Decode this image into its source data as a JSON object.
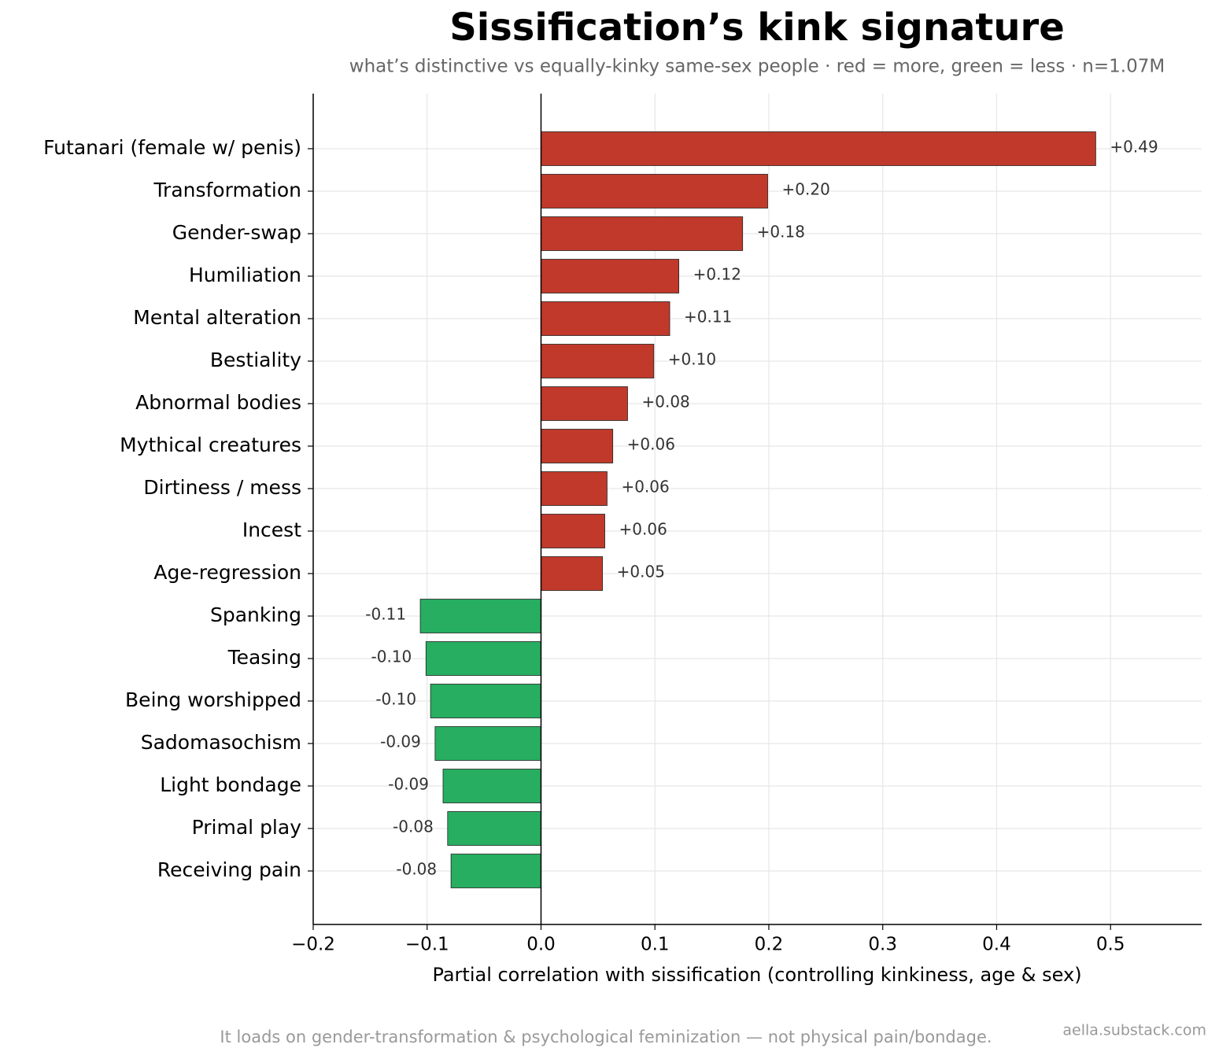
{
  "chart_data": {
    "type": "hbar",
    "title": "Sissification’s kink signature",
    "subtitle": "what’s distinctive vs equally-kinky same-sex people · red = more, green = less · n=1.07M",
    "x_label": "Partial correlation with sissification (controlling kinkiness, age & sex)",
    "caption": "It loads on gender-transformation & psychological feminization — not physical pain/bondage.",
    "source": "aella.substack.com",
    "categories": [
      "Futanari (female w/ penis)",
      "Transformation",
      "Gender-swap",
      "Humiliation",
      "Mental alteration",
      "Bestiality",
      "Abnormal bodies",
      "Mythical creatures",
      "Dirtiness / mess",
      "Incest",
      "Age-regression",
      "Spanking",
      "Teasing",
      "Being worshipped",
      "Sadomasochism",
      "Light bondage",
      "Primal play",
      "Receiving pain"
    ],
    "values": [
      0.487,
      0.199,
      0.177,
      0.121,
      0.113,
      0.099,
      0.076,
      0.063,
      0.058,
      0.056,
      0.054,
      -0.106,
      -0.101,
      -0.097,
      -0.093,
      -0.086,
      -0.082,
      -0.079
    ],
    "value_labels": [
      "+0.49",
      "+0.20",
      "+0.18",
      "+0.12",
      "+0.11",
      "+0.10",
      "+0.08",
      "+0.06",
      "+0.06",
      "+0.06",
      "+0.05",
      "-0.11",
      "-0.10",
      "-0.10",
      "-0.09",
      "-0.09",
      "-0.08",
      "-0.08"
    ],
    "colors": [
      "#c0392b",
      "#c0392b",
      "#c0392b",
      "#c0392b",
      "#c0392b",
      "#c0392b",
      "#c0392b",
      "#c0392b",
      "#c0392b",
      "#c0392b",
      "#c0392b",
      "#27ae60",
      "#27ae60",
      "#27ae60",
      "#27ae60",
      "#27ae60",
      "#27ae60",
      "#27ae60"
    ],
    "xlim": [
      -0.2,
      0.58
    ],
    "xticks": [
      {
        "value": -0.2,
        "label": "−0.2"
      },
      {
        "value": -0.1,
        "label": "−0.1"
      },
      {
        "value": 0,
        "label": "0.0"
      },
      0.1,
      0.2,
      0.3,
      0.4,
      0.5
    ],
    "grid": true
  }
}
